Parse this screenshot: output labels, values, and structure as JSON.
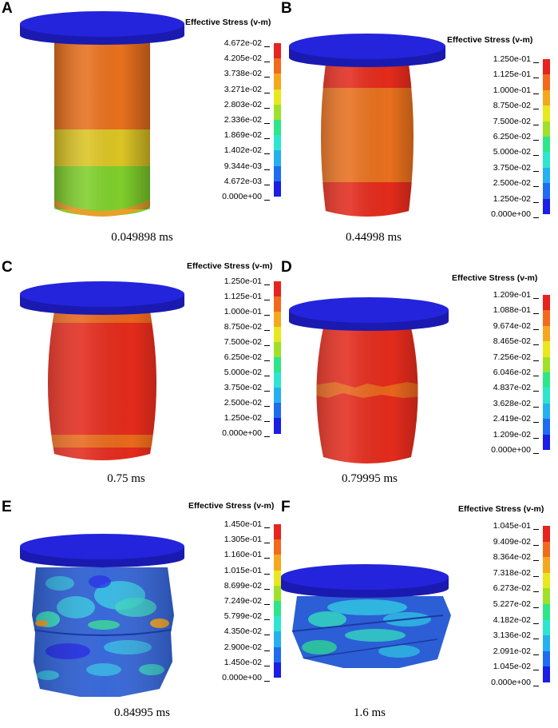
{
  "legend_colors": [
    "#1a1ee6",
    "#1f6cf0",
    "#27b0f0",
    "#2ee6d0",
    "#2ee68a",
    "#3ad62e",
    "#9fe02a",
    "#e8e81e",
    "#f5a81e",
    "#f26a1e",
    "#e8221e"
  ],
  "cylinder_colors": {
    "cap": "#2020d8",
    "red": "#e32b1c",
    "orange": "#e8701d",
    "yellow": "#dcc424",
    "green": "#7fcf2c",
    "blue": "#2c5fd6",
    "cyan": "#2fb5e0",
    "teal": "#33d6c0"
  },
  "panels": [
    {
      "label": "A",
      "legend_title": "Effective Stress (v-m)",
      "time": "0.049898 ms",
      "ticks": [
        "4.672e-02",
        "4.205e-02",
        "3.738e-02",
        "3.271e-02",
        "2.803e-02",
        "2.336e-02",
        "1.869e-02",
        "1.402e-02",
        "9.344e-03",
        "4.672e-03",
        "0.000e+00"
      ]
    },
    {
      "label": "B",
      "legend_title": "Effective Stress (v-m)",
      "time": "0.44998 ms",
      "ticks": [
        "1.250e-01",
        "1.125e-01",
        "1.000e-01",
        "8.750e-02",
        "7.500e-02",
        "6.250e-02",
        "5.000e-02",
        "3.750e-02",
        "2.500e-02",
        "1.250e-02",
        "0.000e+00"
      ]
    },
    {
      "label": "C",
      "legend_title": "Effective Stress (v-m)",
      "time": "0.75 ms",
      "ticks": [
        "1.250e-01",
        "1.125e-01",
        "1.000e-01",
        "8.750e-02",
        "7.500e-02",
        "6.250e-02",
        "5.000e-02",
        "3.750e-02",
        "2.500e-02",
        "1.250e-02",
        "0.000e+00"
      ]
    },
    {
      "label": "D",
      "legend_title": "Effective Stress (v-m)",
      "time": "0.79995 ms",
      "ticks": [
        "1.209e-01",
        "1.088e-01",
        "9.674e-02",
        "8.465e-02",
        "7.256e-02",
        "6.046e-02",
        "4.837e-02",
        "3.628e-02",
        "2.419e-02",
        "1.209e-02",
        "0.000e+00"
      ]
    },
    {
      "label": "E",
      "legend_title": "Effective Stress (v-m)",
      "time": "0.84995 ms",
      "ticks": [
        "1.450e-01",
        "1.305e-01",
        "1.160e-01",
        "1.015e-01",
        "8.699e-02",
        "7.249e-02",
        "5.799e-02",
        "4.350e-02",
        "2.900e-02",
        "1.450e-02",
        "0.000e+00"
      ]
    },
    {
      "label": "F",
      "legend_title": "Effective Stress (v-m)",
      "time": "1.6 ms",
      "ticks": [
        "1.045e-01",
        "9.409e-02",
        "8.364e-02",
        "7.318e-02",
        "6.273e-02",
        "5.227e-02",
        "4.182e-02",
        "3.136e-02",
        "2.091e-02",
        "1.045e-02",
        "0.000e+00"
      ]
    }
  ]
}
